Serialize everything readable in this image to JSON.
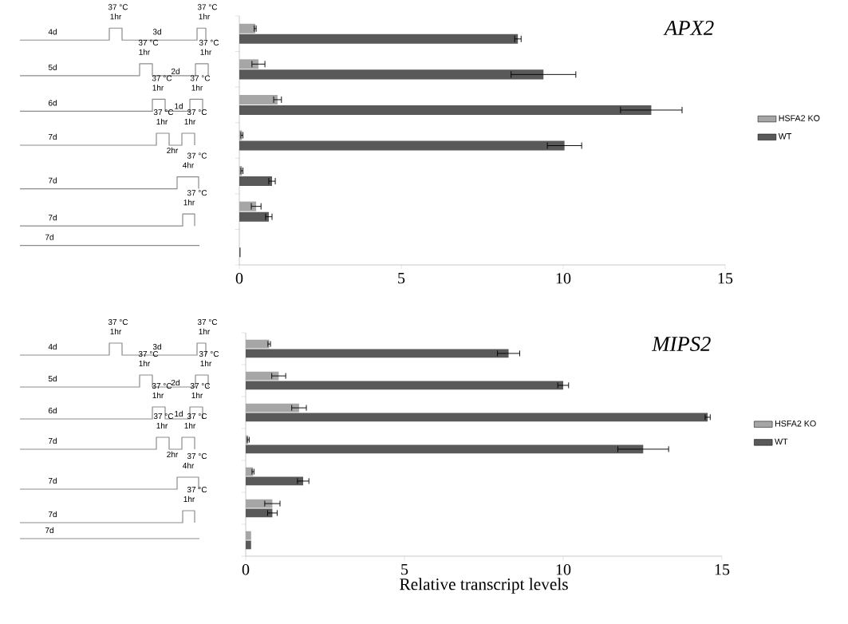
{
  "chart_data": [
    {
      "type": "bar",
      "orientation": "horizontal",
      "title": "APX2",
      "categories": [
        null,
        null,
        null,
        null,
        null,
        null,
        null
      ],
      "series": [
        {
          "name": "HSFA2 KO",
          "color": "#a6a6a6",
          "values": [
            0.49,
            0.59,
            1.18,
            0.08,
            0.08,
            0.52,
            null
          ],
          "errors": [
            0.03,
            0.2,
            0.12,
            0.03,
            0.03,
            0.15,
            null
          ]
        },
        {
          "name": "WT",
          "color": "#595959",
          "values": [
            8.6,
            9.39,
            12.72,
            10.04,
            1.01,
            0.91,
            0.04
          ],
          "errors": [
            0.1,
            1.0,
            0.95,
            0.53,
            0.1,
            0.1,
            null
          ]
        }
      ],
      "xlim": [
        0,
        15
      ],
      "xticks": [
        0,
        5,
        10,
        15
      ],
      "legend": "right",
      "tick_labels": "x",
      "annotations": [
        "4d",
        "37 °C",
        "1hr",
        "3d",
        "37 °C",
        "1hr",
        "5d",
        "37 °C",
        "1hr",
        "2d",
        "37 °C",
        "1hr",
        "6d",
        "37 °C",
        "1hr",
        "1d",
        "37 °C",
        "1hr",
        "7d",
        "37 °C",
        "1hr",
        "2hr",
        "37 °C",
        "1hr",
        "7d",
        "37 °C",
        "4hr",
        "7d",
        "37 °C",
        "1hr",
        "7d"
      ]
    },
    {
      "type": "bar",
      "orientation": "horizontal",
      "title": "MIPS2",
      "xlabel": "Relative transcript levels",
      "categories": [
        null,
        null,
        null,
        null,
        null,
        null,
        null
      ],
      "series": [
        {
          "name": "HSFA2 KO",
          "color": "#a6a6a6",
          "values": [
            0.74,
            1.04,
            1.68,
            0.08,
            0.23,
            0.84,
            0.17
          ],
          "errors": [
            0.04,
            0.22,
            0.23,
            0.03,
            0.03,
            0.24,
            null
          ]
        },
        {
          "name": "WT",
          "color": "#595959",
          "values": [
            8.28,
            10.0,
            14.55,
            12.52,
            1.81,
            0.84,
            0.17
          ],
          "errors": [
            0.35,
            0.17,
            0.08,
            0.8,
            0.18,
            0.15,
            null
          ]
        }
      ],
      "xlim": [
        0,
        15
      ],
      "xticks": [
        0,
        5,
        10,
        15
      ],
      "legend": "right",
      "tick_labels": "x",
      "annotations": [
        "4d",
        "37 °C",
        "1hr",
        "3d",
        "37 °C",
        "1hr",
        "5d",
        "37 °C",
        "1hr",
        "2d",
        "37 °C",
        "1hr",
        "6d",
        "37 °C",
        "1hr",
        "1d",
        "37 °C",
        "1hr",
        "7d",
        "37 °C",
        "1hr",
        "2hr",
        "37 °C",
        "1hr",
        "7d",
        "37 °C",
        "4hr",
        "7d",
        "37 °C",
        "1hr",
        "7d"
      ]
    }
  ]
}
